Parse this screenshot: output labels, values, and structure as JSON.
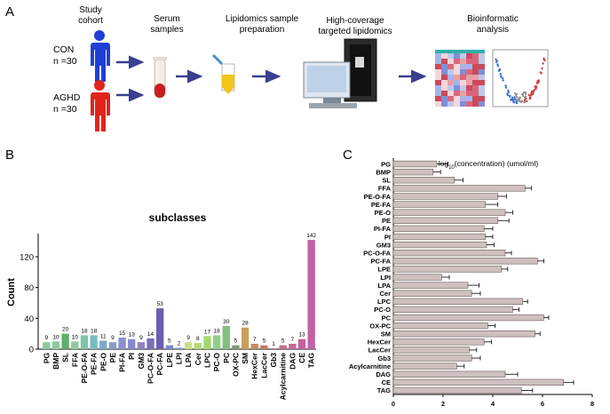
{
  "panels": {
    "a": "A",
    "b": "B",
    "c": "C"
  },
  "workflow": {
    "steps": [
      {
        "line1": "Study",
        "line2": "cohort"
      },
      {
        "line1": "Serum",
        "line2": "samples"
      },
      {
        "line1": "Lipidomics sample",
        "line2": "preparation"
      },
      {
        "line1": "High-coverage",
        "line2": "targeted lipidomics"
      },
      {
        "line1": "Bioinformatic",
        "line2": "analysis"
      }
    ],
    "groups": [
      {
        "name": "CON",
        "n": "n =30",
        "color": "#1f3fd6"
      },
      {
        "name": "AGHD",
        "n": "n =30",
        "color": "#e0241b"
      }
    ]
  },
  "chart_data": [
    {
      "type": "bar",
      "title": "subclasses",
      "xlabel": "",
      "ylabel": "Count",
      "ylim": [
        0,
        150
      ],
      "yticks": [
        0,
        40,
        80,
        120
      ],
      "categories": [
        "PG",
        "BMP",
        "SL",
        "FFA",
        "PE-O-FA",
        "PE-FA",
        "PE-O",
        "PE",
        "PI-FA",
        "PI",
        "GM3",
        "PC-O-FA",
        "PC-FA",
        "LPE",
        "LPI",
        "LPA",
        "Cer",
        "LPC",
        "PC-O",
        "PC",
        "OX-PC",
        "SM",
        "HexCer",
        "LacCer",
        "Gb3",
        "Acylcarnitine",
        "DAG",
        "CE",
        "TAG"
      ],
      "values": [
        9,
        10,
        20,
        10,
        18,
        18,
        11,
        9,
        15,
        13,
        9,
        14,
        53,
        5,
        2,
        9,
        8,
        17,
        18,
        30,
        5,
        28,
        7,
        5,
        1,
        5,
        7,
        13,
        142
      ],
      "colors": [
        "#8fc9a0",
        "#8fc9a0",
        "#5fae6b",
        "#8fc9a0",
        "#7fc3a8",
        "#77bcc0",
        "#7da6c8",
        "#8a9ccb",
        "#8a8fcf",
        "#8a86cc",
        "#8f80c4",
        "#7a6fb8",
        "#6a5fb0",
        "#7c8ad0",
        "#8fa4dc",
        "#c7df8a",
        "#b4d878",
        "#a2d86e",
        "#8fcf8a",
        "#7fc07f",
        "#7e9a7a",
        "#c8a060",
        "#c58a62",
        "#c07a66",
        "#bf6f74",
        "#c46f88",
        "#c76497",
        "#c85e9e",
        "#c261a4"
      ]
    },
    {
      "type": "bar",
      "title": "log10(concentration) (umol/ml)",
      "xlabel": "",
      "ylabel": "",
      "xlim": [
        0,
        8
      ],
      "xticks": [
        0,
        2,
        4,
        6,
        8
      ],
      "categories": [
        "PG",
        "BMP",
        "SL",
        "FFA",
        "PE-O-FA",
        "PE-FA",
        "PE-O",
        "PE",
        "PI-FA",
        "PI",
        "GM3",
        "PC-O-FA",
        "PC-FA",
        "LPE",
        "LPI",
        "LPA",
        "Cer",
        "LPC",
        "PC-O",
        "PC",
        "OX-PC",
        "SM",
        "HexCer",
        "LacCer",
        "Gb3",
        "Acylcarnitine",
        "DAG",
        "CE",
        "TAG"
      ],
      "values": [
        1.75,
        1.6,
        2.45,
        5.3,
        4.2,
        3.7,
        4.5,
        4.2,
        3.65,
        3.7,
        3.75,
        4.5,
        5.8,
        4.35,
        1.95,
        3.0,
        3.15,
        5.2,
        4.8,
        6.05,
        3.8,
        5.7,
        3.65,
        3.05,
        3.15,
        2.55,
        4.5,
        6.85,
        5.15
      ],
      "errors": [
        0.45,
        0.3,
        0.35,
        0.25,
        0.35,
        0.5,
        0.3,
        0.45,
        0.35,
        0.3,
        0.3,
        0.25,
        0.25,
        0.25,
        0.3,
        0.45,
        0.35,
        0.2,
        0.25,
        0.2,
        0.3,
        0.2,
        0.3,
        0.3,
        0.35,
        0.3,
        0.5,
        0.4,
        0.45
      ],
      "bar_color": "#cfc0c0"
    }
  ]
}
